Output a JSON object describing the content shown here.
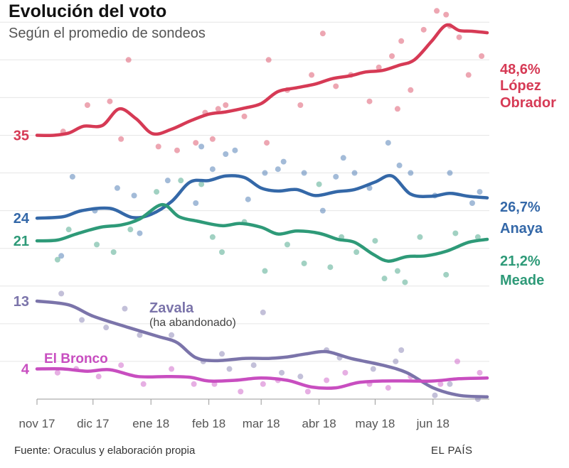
{
  "header": {
    "title": "Evolución del voto",
    "subtitle": "Según el promedio de sondeos"
  },
  "footer": {
    "source": "Fuente: Oraculus y elaboración propia",
    "brand": "EL PAÍS"
  },
  "chart_data": {
    "type": "line",
    "title": "Evolución del voto",
    "subtitle": "Según el promedio de sondeos",
    "x_type": "date",
    "x_range": [
      "2017-11-01",
      "2018-06-30"
    ],
    "x_ticks": [
      {
        "date": "2017-11-01",
        "label": "nov 17"
      },
      {
        "date": "2017-12-01",
        "label": "dic 17"
      },
      {
        "date": "2018-01-01",
        "label": "ene 18"
      },
      {
        "date": "2018-02-01",
        "label": "feb 18"
      },
      {
        "date": "2018-03-01",
        "label": "mar 18"
      },
      {
        "date": "2018-04-01",
        "label": "abr 18"
      },
      {
        "date": "2018-05-01",
        "label": "may 18"
      },
      {
        "date": "2018-06-01",
        "label": "jun 18"
      }
    ],
    "ylim": [
      0,
      52
    ],
    "y_axis_visible": false,
    "grid": "horizontal",
    "series": [
      {
        "name": "López Obrador",
        "label_lines": [
          "López",
          "Obrador"
        ],
        "color": "#d63a55",
        "start_label": "35",
        "end_label": "48,6%",
        "line": [
          [
            "2017-11-01",
            35.0
          ],
          [
            "2017-11-10",
            35.0
          ],
          [
            "2017-11-18",
            35.3
          ],
          [
            "2017-11-26",
            36.2
          ],
          [
            "2017-12-06",
            36.3
          ],
          [
            "2017-12-15",
            38.5
          ],
          [
            "2017-12-24",
            37.2
          ],
          [
            "2018-01-02",
            35.2
          ],
          [
            "2018-01-12",
            35.8
          ],
          [
            "2018-01-22",
            36.9
          ],
          [
            "2018-02-01",
            37.8
          ],
          [
            "2018-02-10",
            38.1
          ],
          [
            "2018-02-20",
            38.6
          ],
          [
            "2018-03-01",
            39.2
          ],
          [
            "2018-03-10",
            40.8
          ],
          [
            "2018-03-20",
            41.3
          ],
          [
            "2018-03-30",
            41.8
          ],
          [
            "2018-04-08",
            42.5
          ],
          [
            "2018-04-18",
            42.9
          ],
          [
            "2018-04-26",
            43.4
          ],
          [
            "2018-05-05",
            43.6
          ],
          [
            "2018-05-14",
            44.3
          ],
          [
            "2018-05-22",
            45.0
          ],
          [
            "2018-05-31",
            47.4
          ],
          [
            "2018-06-08",
            49.6
          ],
          [
            "2018-06-15",
            48.9
          ],
          [
            "2018-06-22",
            48.8
          ],
          [
            "2018-06-30",
            48.6
          ]
        ],
        "polls": [
          [
            "2017-11-15",
            35.5
          ],
          [
            "2017-11-28",
            39.0
          ],
          [
            "2017-12-10",
            39.5
          ],
          [
            "2017-12-16",
            34.5
          ],
          [
            "2017-12-20",
            45.0
          ],
          [
            "2018-01-05",
            33.5
          ],
          [
            "2018-01-15",
            33.0
          ],
          [
            "2018-01-25",
            34.0
          ],
          [
            "2018-01-30",
            38.0
          ],
          [
            "2018-02-03",
            34.5
          ],
          [
            "2018-02-06",
            38.5
          ],
          [
            "2018-02-10",
            39.0
          ],
          [
            "2018-02-20",
            37.5
          ],
          [
            "2018-03-04",
            34.0
          ],
          [
            "2018-03-05",
            45.0
          ],
          [
            "2018-03-15",
            41.0
          ],
          [
            "2018-03-22",
            39.0
          ],
          [
            "2018-03-28",
            43.0
          ],
          [
            "2018-04-03",
            48.5
          ],
          [
            "2018-04-10",
            41.5
          ],
          [
            "2018-04-18",
            43.0
          ],
          [
            "2018-04-28",
            39.5
          ],
          [
            "2018-05-03",
            44.0
          ],
          [
            "2018-05-10",
            45.5
          ],
          [
            "2018-05-13",
            38.5
          ],
          [
            "2018-05-15",
            47.5
          ],
          [
            "2018-05-20",
            41.0
          ],
          [
            "2018-05-27",
            49.0
          ],
          [
            "2018-06-03",
            51.5
          ],
          [
            "2018-06-08",
            51.0
          ],
          [
            "2018-06-10",
            49.5
          ],
          [
            "2018-06-15",
            48.0
          ],
          [
            "2018-06-20",
            43.0
          ],
          [
            "2018-06-27",
            45.5
          ]
        ]
      },
      {
        "name": "Anaya",
        "label_lines": [
          "Anaya"
        ],
        "color": "#3468a8",
        "start_label": "24",
        "end_label": "26,7%",
        "line": [
          [
            "2017-11-01",
            24.0
          ],
          [
            "2017-11-15",
            24.2
          ],
          [
            "2017-11-25",
            25.0
          ],
          [
            "2017-12-10",
            25.3
          ],
          [
            "2017-12-22",
            24.1
          ],
          [
            "2018-01-01",
            24.5
          ],
          [
            "2018-01-12",
            26.2
          ],
          [
            "2018-01-22",
            28.8
          ],
          [
            "2018-02-01",
            29.0
          ],
          [
            "2018-02-10",
            29.6
          ],
          [
            "2018-02-20",
            29.4
          ],
          [
            "2018-03-01",
            28.0
          ],
          [
            "2018-03-10",
            27.6
          ],
          [
            "2018-03-20",
            27.8
          ],
          [
            "2018-03-30",
            27.0
          ],
          [
            "2018-04-10",
            27.5
          ],
          [
            "2018-04-20",
            27.8
          ],
          [
            "2018-05-01",
            28.8
          ],
          [
            "2018-05-10",
            29.6
          ],
          [
            "2018-05-20",
            27.2
          ],
          [
            "2018-05-31",
            26.9
          ],
          [
            "2018-06-10",
            27.3
          ],
          [
            "2018-06-20",
            26.9
          ],
          [
            "2018-06-30",
            26.7
          ]
        ],
        "polls": [
          [
            "2017-11-14",
            19.0
          ],
          [
            "2017-11-20",
            29.5
          ],
          [
            "2017-12-02",
            25.0
          ],
          [
            "2017-12-14",
            28.0
          ],
          [
            "2017-12-23",
            27.0
          ],
          [
            "2017-12-26",
            22.0
          ],
          [
            "2018-01-10",
            29.0
          ],
          [
            "2018-01-25",
            26.0
          ],
          [
            "2018-01-28",
            33.5
          ],
          [
            "2018-02-03",
            30.5
          ],
          [
            "2018-02-10",
            32.5
          ],
          [
            "2018-02-15",
            33.0
          ],
          [
            "2018-02-22",
            26.5
          ],
          [
            "2018-03-03",
            30.0
          ],
          [
            "2018-03-10",
            30.5
          ],
          [
            "2018-03-13",
            31.5
          ],
          [
            "2018-03-24",
            30.0
          ],
          [
            "2018-04-03",
            25.0
          ],
          [
            "2018-04-10",
            29.5
          ],
          [
            "2018-04-14",
            32.0
          ],
          [
            "2018-04-20",
            30.0
          ],
          [
            "2018-04-28",
            28.0
          ],
          [
            "2018-05-08",
            34.0
          ],
          [
            "2018-05-14",
            31.0
          ],
          [
            "2018-05-20",
            30.0
          ],
          [
            "2018-06-02",
            27.0
          ],
          [
            "2018-06-10",
            30.0
          ],
          [
            "2018-06-22",
            26.0
          ],
          [
            "2018-06-26",
            27.5
          ]
        ]
      },
      {
        "name": "Meade",
        "label_lines": [
          "Meade"
        ],
        "color": "#2e9a78",
        "start_label": "21",
        "end_label": "21,2%",
        "line": [
          [
            "2017-11-01",
            21.0
          ],
          [
            "2017-11-12",
            21.1
          ],
          [
            "2017-11-22",
            21.9
          ],
          [
            "2017-12-05",
            22.8
          ],
          [
            "2017-12-16",
            23.1
          ],
          [
            "2017-12-26",
            23.9
          ],
          [
            "2018-01-07",
            25.8
          ],
          [
            "2018-01-16",
            24.2
          ],
          [
            "2018-01-26",
            23.6
          ],
          [
            "2018-02-08",
            23.0
          ],
          [
            "2018-02-18",
            23.3
          ],
          [
            "2018-03-01",
            22.8
          ],
          [
            "2018-03-10",
            21.9
          ],
          [
            "2018-03-20",
            22.3
          ],
          [
            "2018-04-01",
            22.0
          ],
          [
            "2018-04-11",
            21.2
          ],
          [
            "2018-04-20",
            20.8
          ],
          [
            "2018-04-30",
            19.2
          ],
          [
            "2018-05-08",
            18.3
          ],
          [
            "2018-05-18",
            18.9
          ],
          [
            "2018-05-28",
            19.0
          ],
          [
            "2018-06-08",
            19.6
          ],
          [
            "2018-06-20",
            20.8
          ],
          [
            "2018-06-30",
            21.2
          ]
        ],
        "polls": [
          [
            "2017-11-12",
            18.5
          ],
          [
            "2017-11-18",
            22.5
          ],
          [
            "2017-12-03",
            20.5
          ],
          [
            "2017-12-12",
            19.5
          ],
          [
            "2017-12-21",
            22.5
          ],
          [
            "2018-01-04",
            27.5
          ],
          [
            "2018-01-17",
            29.0
          ],
          [
            "2018-01-28",
            28.5
          ],
          [
            "2018-02-03",
            21.5
          ],
          [
            "2018-02-08",
            19.5
          ],
          [
            "2018-02-20",
            23.5
          ],
          [
            "2018-03-03",
            17.0
          ],
          [
            "2018-03-15",
            20.5
          ],
          [
            "2018-03-24",
            18.0
          ],
          [
            "2018-04-01",
            28.5
          ],
          [
            "2018-04-07",
            17.5
          ],
          [
            "2018-04-13",
            21.5
          ],
          [
            "2018-04-21",
            19.5
          ],
          [
            "2018-05-01",
            21.0
          ],
          [
            "2018-05-06",
            16.0
          ],
          [
            "2018-05-13",
            17.0
          ],
          [
            "2018-05-17",
            15.5
          ],
          [
            "2018-05-25",
            21.5
          ],
          [
            "2018-06-08",
            16.5
          ],
          [
            "2018-06-13",
            22.0
          ],
          [
            "2018-06-25",
            21.5
          ]
        ]
      },
      {
        "name": "Zavala",
        "label_lines": [
          "Zavala"
        ],
        "note": "(ha abandonado)",
        "color": "#7b74aa",
        "start_label": "13",
        "line": [
          [
            "2017-11-01",
            13.0
          ],
          [
            "2017-11-18",
            12.5
          ],
          [
            "2017-12-01",
            11.0
          ],
          [
            "2017-12-20",
            9.5
          ],
          [
            "2018-01-05",
            8.3
          ],
          [
            "2018-01-15",
            7.5
          ],
          [
            "2018-01-25",
            5.5
          ],
          [
            "2018-02-05",
            5.1
          ],
          [
            "2018-02-20",
            5.4
          ],
          [
            "2018-03-05",
            5.4
          ],
          [
            "2018-03-15",
            5.6
          ],
          [
            "2018-03-25",
            6.0
          ],
          [
            "2018-04-05",
            6.3
          ],
          [
            "2018-04-18",
            5.4
          ],
          [
            "2018-05-05",
            4.5
          ],
          [
            "2018-05-18",
            3.5
          ],
          [
            "2018-06-01",
            1.5
          ],
          [
            "2018-06-15",
            0.5
          ],
          [
            "2018-06-30",
            0.3
          ]
        ],
        "polls": [
          [
            "2017-11-14",
            14.0
          ],
          [
            "2017-11-25",
            10.5
          ],
          [
            "2017-12-08",
            9.5
          ],
          [
            "2017-12-18",
            12.0
          ],
          [
            "2017-12-26",
            8.5
          ],
          [
            "2018-01-12",
            8.5
          ],
          [
            "2018-01-29",
            5.0
          ],
          [
            "2018-02-08",
            6.0
          ],
          [
            "2018-02-12",
            4.0
          ],
          [
            "2018-02-25",
            4.5
          ],
          [
            "2018-03-02",
            11.5
          ],
          [
            "2018-03-12",
            3.5
          ],
          [
            "2018-03-22",
            3.0
          ],
          [
            "2018-04-05",
            6.5
          ],
          [
            "2018-04-12",
            5.5
          ],
          [
            "2018-04-30",
            4.0
          ],
          [
            "2018-05-12",
            5.0
          ],
          [
            "2018-05-15",
            6.5
          ],
          [
            "2018-06-02",
            0.5
          ],
          [
            "2018-06-10",
            2.0
          ],
          [
            "2018-06-25",
            0.0
          ]
        ]
      },
      {
        "name": "El Bronco",
        "label_lines": [
          "El Bronco"
        ],
        "color": "#c84ec0",
        "start_label": "4",
        "line": [
          [
            "2017-11-01",
            4.0
          ],
          [
            "2017-11-15",
            4.0
          ],
          [
            "2017-11-28",
            3.7
          ],
          [
            "2017-12-10",
            3.9
          ],
          [
            "2017-12-25",
            3.0
          ],
          [
            "2018-01-10",
            3.0
          ],
          [
            "2018-01-22",
            2.9
          ],
          [
            "2018-02-01",
            2.4
          ],
          [
            "2018-02-15",
            2.5
          ],
          [
            "2018-03-01",
            2.8
          ],
          [
            "2018-03-15",
            2.5
          ],
          [
            "2018-03-28",
            1.6
          ],
          [
            "2018-04-10",
            1.5
          ],
          [
            "2018-04-22",
            2.2
          ],
          [
            "2018-05-05",
            2.4
          ],
          [
            "2018-05-20",
            2.4
          ],
          [
            "2018-06-01",
            2.4
          ],
          [
            "2018-06-15",
            2.7
          ],
          [
            "2018-06-30",
            2.8
          ]
        ],
        "polls": [
          [
            "2017-11-12",
            3.5
          ],
          [
            "2017-11-22",
            4.0
          ],
          [
            "2017-12-04",
            3.0
          ],
          [
            "2017-12-16",
            4.5
          ],
          [
            "2017-12-28",
            2.0
          ],
          [
            "2018-01-12",
            4.0
          ],
          [
            "2018-01-24",
            2.0
          ],
          [
            "2018-02-04",
            2.0
          ],
          [
            "2018-02-18",
            1.0
          ],
          [
            "2018-03-02",
            2.0
          ],
          [
            "2018-03-10",
            2.5
          ],
          [
            "2018-03-26",
            1.0
          ],
          [
            "2018-04-05",
            2.5
          ],
          [
            "2018-04-15",
            3.5
          ],
          [
            "2018-04-28",
            2.0
          ],
          [
            "2018-05-08",
            1.5
          ],
          [
            "2018-05-20",
            3.0
          ],
          [
            "2018-06-05",
            2.0
          ],
          [
            "2018-06-14",
            5.0
          ],
          [
            "2018-06-26",
            3.5
          ]
        ]
      }
    ]
  }
}
